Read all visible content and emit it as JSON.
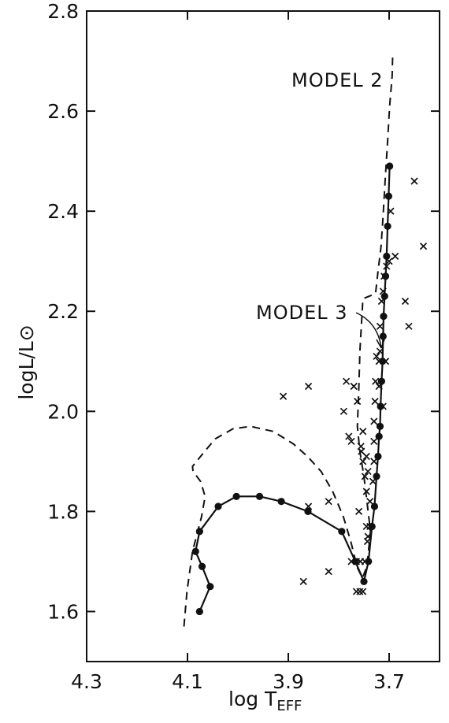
{
  "chart_data": {
    "type": "line",
    "xlabel": "log T_EFF",
    "ylabel": "logL/L⊙",
    "xlim": [
      4.3,
      3.6
    ],
    "ylim": [
      1.5,
      2.8
    ],
    "x_reversed": true,
    "x_ticks": [
      4.3,
      4.1,
      3.9,
      3.7
    ],
    "x_tick_labels": [
      "4.3",
      "4.1",
      "3.9",
      "3.7"
    ],
    "y_ticks": [
      1.6,
      1.8,
      2.0,
      2.2,
      2.4,
      2.6,
      2.8
    ],
    "y_tick_labels": [
      "1.6",
      "1.8",
      "2.0",
      "2.2",
      "2.4",
      "2.6",
      "2.8"
    ],
    "grid": false,
    "annotations": [
      {
        "text": "MODEL 2",
        "series": "model2"
      },
      {
        "text": "MODEL 3",
        "series": "model3"
      }
    ],
    "series": [
      {
        "id": "model2",
        "style": "dashed",
        "color": "#111111",
        "points": [
          [
            4.107,
            1.57
          ],
          [
            4.101,
            1.64
          ],
          [
            4.09,
            1.72
          ],
          [
            4.072,
            1.79
          ],
          [
            4.065,
            1.83
          ],
          [
            4.074,
            1.86
          ],
          [
            4.089,
            1.88
          ],
          [
            4.09,
            1.89
          ],
          [
            4.07,
            1.915
          ],
          [
            4.045,
            1.945
          ],
          [
            4.01,
            1.965
          ],
          [
            3.975,
            1.97
          ],
          [
            3.93,
            1.96
          ],
          [
            3.89,
            1.935
          ],
          [
            3.862,
            1.91
          ],
          [
            3.835,
            1.88
          ],
          [
            3.812,
            1.84
          ],
          [
            3.791,
            1.79
          ],
          [
            3.776,
            1.74
          ],
          [
            3.764,
            1.69
          ],
          [
            3.753,
            1.667
          ],
          [
            3.744,
            1.69
          ],
          [
            3.737,
            1.76
          ],
          [
            3.744,
            1.82
          ],
          [
            3.75,
            1.87
          ],
          [
            3.758,
            1.92
          ],
          [
            3.763,
            1.97
          ],
          [
            3.76,
            2.05
          ],
          [
            3.758,
            2.12
          ],
          [
            3.754,
            2.19
          ],
          [
            3.752,
            2.225
          ],
          [
            3.74,
            2.23
          ],
          [
            3.727,
            2.235
          ],
          [
            3.722,
            2.28
          ],
          [
            3.716,
            2.33
          ],
          [
            3.712,
            2.39
          ],
          [
            3.708,
            2.46
          ],
          [
            3.703,
            2.54
          ],
          [
            3.699,
            2.61
          ],
          [
            3.694,
            2.67
          ],
          [
            3.693,
            2.71
          ]
        ]
      },
      {
        "id": "model3",
        "style": "solid-with-dots",
        "color": "#111111",
        "points": [
          [
            4.076,
            1.6
          ],
          [
            4.055,
            1.65
          ],
          [
            4.071,
            1.69
          ],
          [
            4.084,
            1.72
          ],
          [
            4.076,
            1.76
          ],
          [
            4.039,
            1.81
          ],
          [
            4.003,
            1.83
          ],
          [
            3.957,
            1.83
          ],
          [
            3.914,
            1.82
          ],
          [
            3.861,
            1.8
          ],
          [
            3.794,
            1.76
          ],
          [
            3.767,
            1.7
          ],
          [
            3.75,
            1.66
          ],
          [
            3.741,
            1.7
          ],
          [
            3.734,
            1.77
          ],
          [
            3.729,
            1.81
          ],
          [
            3.725,
            1.87
          ],
          [
            3.722,
            1.91
          ],
          [
            3.72,
            1.95
          ],
          [
            3.718,
            1.97
          ],
          [
            3.717,
            2.01
          ],
          [
            3.715,
            2.06
          ],
          [
            3.713,
            2.1
          ],
          [
            3.712,
            2.15
          ],
          [
            3.711,
            2.19
          ],
          [
            3.709,
            2.23
          ],
          [
            3.707,
            2.27
          ],
          [
            3.705,
            2.31
          ],
          [
            3.703,
            2.37
          ],
          [
            3.701,
            2.43
          ],
          [
            3.699,
            2.49
          ]
        ]
      },
      {
        "id": "stars",
        "style": "x-markers",
        "color": "#111111",
        "points": [
          [
            3.86,
            1.81
          ],
          [
            3.82,
            1.82
          ],
          [
            3.87,
            1.66
          ],
          [
            3.82,
            1.68
          ],
          [
            3.765,
            1.7
          ],
          [
            3.757,
            1.7
          ],
          [
            3.748,
            1.7
          ],
          [
            3.743,
            1.74
          ],
          [
            3.745,
            1.77
          ],
          [
            3.76,
            1.8
          ],
          [
            3.752,
            1.64
          ],
          [
            3.758,
            1.64
          ],
          [
            3.765,
            1.64
          ],
          [
            3.775,
            1.7
          ],
          [
            3.775,
            1.94
          ],
          [
            3.78,
            1.95
          ],
          [
            3.79,
            2.0
          ],
          [
            3.785,
            2.06
          ],
          [
            3.77,
            2.05
          ],
          [
            3.763,
            2.02
          ],
          [
            3.86,
            2.05
          ],
          [
            3.91,
            2.03
          ],
          [
            3.745,
            1.84
          ],
          [
            3.748,
            1.87
          ],
          [
            3.752,
            1.9
          ],
          [
            3.755,
            1.92
          ],
          [
            3.756,
            1.93
          ],
          [
            3.752,
            1.96
          ],
          [
            3.745,
            1.91
          ],
          [
            3.742,
            1.88
          ],
          [
            3.738,
            1.82
          ],
          [
            3.738,
            1.77
          ],
          [
            3.742,
            1.75
          ],
          [
            3.732,
            1.86
          ],
          [
            3.73,
            1.9
          ],
          [
            3.73,
            1.94
          ],
          [
            3.73,
            1.98
          ],
          [
            3.728,
            2.02
          ],
          [
            3.727,
            2.06
          ],
          [
            3.725,
            2.11
          ],
          [
            3.72,
            2.05
          ],
          [
            3.72,
            2.1
          ],
          [
            3.718,
            2.12
          ],
          [
            3.718,
            2.17
          ],
          [
            3.715,
            2.22
          ],
          [
            3.712,
            2.24
          ],
          [
            3.71,
            2.27
          ],
          [
            3.705,
            2.29
          ],
          [
            3.7,
            2.3
          ],
          [
            3.697,
            2.4
          ],
          [
            3.688,
            2.31
          ],
          [
            3.668,
            2.22
          ],
          [
            3.661,
            2.17
          ],
          [
            3.65,
            2.46
          ],
          [
            3.632,
            2.33
          ],
          [
            3.707,
            2.1
          ],
          [
            3.712,
            2.01
          ]
        ]
      }
    ]
  }
}
